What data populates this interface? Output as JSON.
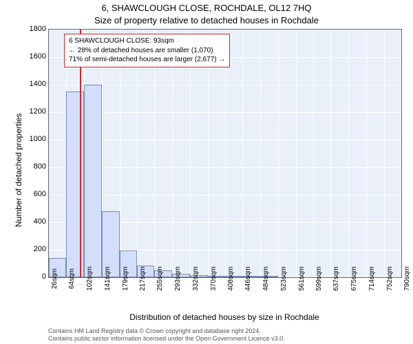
{
  "title_line1": "6, SHAWCLOUGH CLOSE, ROCHDALE, OL12 7HQ",
  "title_line2": "Size of property relative to detached houses in Rochdale",
  "y_axis_label": "Number of detached properties",
  "x_axis_label": "Distribution of detached houses by size in Rochdale",
  "footer_line1": "Contains HM Land Registry data © Crown copyright and database right 2024.",
  "footer_line2": "Contains public sector information licensed under the Open Government Licence v3.0.",
  "chart": {
    "type": "histogram",
    "ylim": [
      0,
      1800
    ],
    "ytick_step": 200,
    "background_color": "#e9f0f9",
    "grid_color": "#ffffff",
    "bar_fill": "#d3defb",
    "bar_border": "#7a8bb0",
    "marker_color": "#c92a2a",
    "marker_x_value": 93,
    "x_range": [
      26,
      790
    ],
    "x_tick_values": [
      26,
      64,
      102,
      141,
      179,
      217,
      255,
      293,
      332,
      370,
      408,
      446,
      484,
      523,
      561,
      599,
      637,
      675,
      714,
      752,
      790
    ],
    "x_tick_unit": "sqm",
    "bars": [
      {
        "x0": 26,
        "x1": 64,
        "value": 140
      },
      {
        "x0": 64,
        "x1": 102,
        "value": 1350
      },
      {
        "x0": 102,
        "x1": 141,
        "value": 1400
      },
      {
        "x0": 141,
        "x1": 179,
        "value": 480
      },
      {
        "x0": 179,
        "x1": 217,
        "value": 195
      },
      {
        "x0": 217,
        "x1": 255,
        "value": 85
      },
      {
        "x0": 255,
        "x1": 293,
        "value": 48
      },
      {
        "x0": 293,
        "x1": 332,
        "value": 27
      },
      {
        "x0": 332,
        "x1": 370,
        "value": 13
      },
      {
        "x0": 370,
        "x1": 408,
        "value": 12
      },
      {
        "x0": 408,
        "x1": 446,
        "value": 10
      },
      {
        "x0": 446,
        "x1": 484,
        "value": 11
      },
      {
        "x0": 484,
        "x1": 523,
        "value": 4
      }
    ]
  },
  "infobox": {
    "line1": "6 SHAWCLOUGH CLOSE: 93sqm",
    "line2": "← 28% of detached houses are smaller (1,070)",
    "line3": "71% of semi-detached houses are larger (2,677) →"
  }
}
